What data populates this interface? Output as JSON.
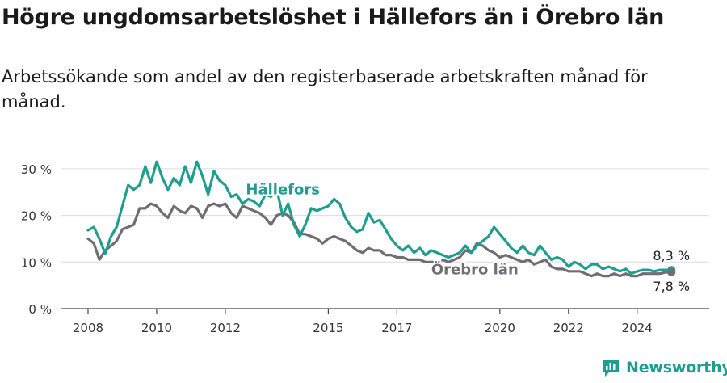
{
  "title": "Högre ungdomsarbetslöshet i Hällefors än i Örebro län",
  "subtitle": "Arbetssökande som andel av den registerbaserade arbetskraften månad för månad.",
  "brand": {
    "name": "Newsworthy",
    "color": "#1f9e8f"
  },
  "chart_data": {
    "type": "line",
    "ylim": [
      0,
      35
    ],
    "yticks": [
      0,
      10,
      20,
      30
    ],
    "ytick_labels": [
      "0 %",
      "10 %",
      "20 %",
      "30 %"
    ],
    "xticks": [
      2008,
      2010,
      2012,
      2015,
      2017,
      2020,
      2022,
      2024
    ],
    "xlim": [
      2007.2,
      2026.1
    ],
    "grid": true,
    "series": [
      {
        "name": "Hällefors",
        "color": "#1f9e8f",
        "x": [
          2008.0,
          2008.17,
          2008.33,
          2008.5,
          2008.67,
          2008.83,
          2009.0,
          2009.17,
          2009.33,
          2009.5,
          2009.67,
          2009.83,
          2010.0,
          2010.17,
          2010.33,
          2010.5,
          2010.67,
          2010.83,
          2011.0,
          2011.17,
          2011.33,
          2011.5,
          2011.67,
          2011.83,
          2012.0,
          2012.17,
          2012.33,
          2012.5,
          2012.67,
          2012.83,
          2013.0,
          2013.17,
          2013.33,
          2013.5,
          2013.67,
          2013.83,
          2014.0,
          2014.17,
          2014.33,
          2014.5,
          2014.67,
          2014.83,
          2015.0,
          2015.17,
          2015.33,
          2015.5,
          2015.67,
          2015.83,
          2016.0,
          2016.17,
          2016.33,
          2016.5,
          2016.67,
          2016.83,
          2017.0,
          2017.17,
          2017.33,
          2017.5,
          2017.67,
          2017.83,
          2018.0,
          2018.17,
          2018.33,
          2018.5,
          2018.67,
          2018.83,
          2019.0,
          2019.17,
          2019.33,
          2019.5,
          2019.67,
          2019.83,
          2020.0,
          2020.17,
          2020.33,
          2020.5,
          2020.67,
          2020.83,
          2021.0,
          2021.17,
          2021.33,
          2021.5,
          2021.67,
          2021.83,
          2022.0,
          2022.17,
          2022.33,
          2022.5,
          2022.67,
          2022.83,
          2023.0,
          2023.17,
          2023.33,
          2023.5,
          2023.67,
          2023.83,
          2024.0,
          2024.17,
          2024.33,
          2024.5,
          2024.67,
          2024.83,
          2025.0
        ],
        "values": [
          16.8,
          17.5,
          15.0,
          11.8,
          15.5,
          17.5,
          22.0,
          26.5,
          25.5,
          26.5,
          30.5,
          27.0,
          31.5,
          28.0,
          25.5,
          28.0,
          26.5,
          30.5,
          27.0,
          31.5,
          28.5,
          24.5,
          29.5,
          27.5,
          26.5,
          24.0,
          24.5,
          22.5,
          23.5,
          23.0,
          22.0,
          24.5,
          24.0,
          25.5,
          20.0,
          22.5,
          18.0,
          15.5,
          18.0,
          21.5,
          21.0,
          21.5,
          22.0,
          23.5,
          22.5,
          19.5,
          17.5,
          16.5,
          17.0,
          20.5,
          18.5,
          19.0,
          17.0,
          15.0,
          13.5,
          12.5,
          13.5,
          12.0,
          13.0,
          11.5,
          12.5,
          12.0,
          11.5,
          11.0,
          11.5,
          12.0,
          13.5,
          12.0,
          13.5,
          14.5,
          15.5,
          17.5,
          16.0,
          14.5,
          13.0,
          12.0,
          13.5,
          12.0,
          11.5,
          13.5,
          12.0,
          10.5,
          11.0,
          10.5,
          9.0,
          10.0,
          9.5,
          8.5,
          9.5,
          9.5,
          8.5,
          9.0,
          8.5,
          8.0,
          8.5,
          7.5,
          8.0,
          8.3,
          8.3,
          8.0,
          8.3,
          8.3,
          8.3
        ]
      },
      {
        "name": "Örebro län",
        "color": "#6e6e73",
        "x": [
          2008.0,
          2008.17,
          2008.33,
          2008.5,
          2008.67,
          2008.83,
          2009.0,
          2009.17,
          2009.33,
          2009.5,
          2009.67,
          2009.83,
          2010.0,
          2010.17,
          2010.33,
          2010.5,
          2010.67,
          2010.83,
          2011.0,
          2011.17,
          2011.33,
          2011.5,
          2011.67,
          2011.83,
          2012.0,
          2012.17,
          2012.33,
          2012.5,
          2012.67,
          2012.83,
          2013.0,
          2013.17,
          2013.33,
          2013.5,
          2013.67,
          2013.83,
          2014.0,
          2014.17,
          2014.33,
          2014.5,
          2014.67,
          2014.83,
          2015.0,
          2015.17,
          2015.33,
          2015.5,
          2015.67,
          2015.83,
          2016.0,
          2016.17,
          2016.33,
          2016.5,
          2016.67,
          2016.83,
          2017.0,
          2017.17,
          2017.33,
          2017.5,
          2017.67,
          2017.83,
          2018.0,
          2018.17,
          2018.33,
          2018.5,
          2018.67,
          2018.83,
          2019.0,
          2019.17,
          2019.33,
          2019.5,
          2019.67,
          2019.83,
          2020.0,
          2020.17,
          2020.33,
          2020.5,
          2020.67,
          2020.83,
          2021.0,
          2021.17,
          2021.33,
          2021.5,
          2021.67,
          2021.83,
          2022.0,
          2022.17,
          2022.33,
          2022.5,
          2022.67,
          2022.83,
          2023.0,
          2023.17,
          2023.33,
          2023.5,
          2023.67,
          2023.83,
          2024.0,
          2024.17,
          2024.33,
          2024.5,
          2024.67,
          2024.83,
          2025.0
        ],
        "values": [
          15.0,
          14.0,
          10.5,
          12.5,
          13.5,
          14.5,
          17.0,
          17.5,
          18.0,
          21.5,
          21.5,
          22.5,
          22.0,
          20.5,
          19.5,
          22.0,
          21.0,
          20.5,
          22.0,
          21.5,
          19.5,
          22.0,
          22.5,
          22.0,
          22.5,
          20.5,
          19.5,
          22.0,
          21.5,
          21.0,
          20.5,
          19.5,
          18.0,
          20.0,
          20.5,
          20.0,
          18.5,
          16.0,
          16.0,
          15.5,
          15.0,
          14.0,
          15.0,
          15.5,
          15.0,
          14.5,
          13.5,
          12.5,
          12.0,
          13.0,
          12.5,
          12.5,
          11.5,
          11.5,
          11.0,
          11.0,
          10.5,
          10.5,
          10.5,
          10.0,
          10.0,
          10.0,
          10.5,
          10.0,
          10.5,
          11.0,
          12.5,
          12.0,
          14.0,
          13.5,
          12.5,
          12.0,
          11.0,
          11.5,
          11.0,
          10.5,
          10.0,
          10.5,
          9.5,
          10.0,
          10.5,
          9.0,
          8.5,
          8.5,
          8.0,
          8.0,
          8.0,
          7.5,
          7.0,
          7.5,
          7.0,
          7.0,
          7.5,
          7.0,
          7.5,
          7.0,
          7.0,
          7.5,
          7.5,
          7.5,
          7.5,
          7.8,
          7.8
        ]
      }
    ],
    "annotations": [
      {
        "series": "Hällefors",
        "label": "Hällefors"
      },
      {
        "series": "Örebro län",
        "label": "Örebro län"
      },
      {
        "series": "Hällefors",
        "label": "8,3 %"
      },
      {
        "series": "Örebro län",
        "label": "7,8 %"
      }
    ]
  }
}
